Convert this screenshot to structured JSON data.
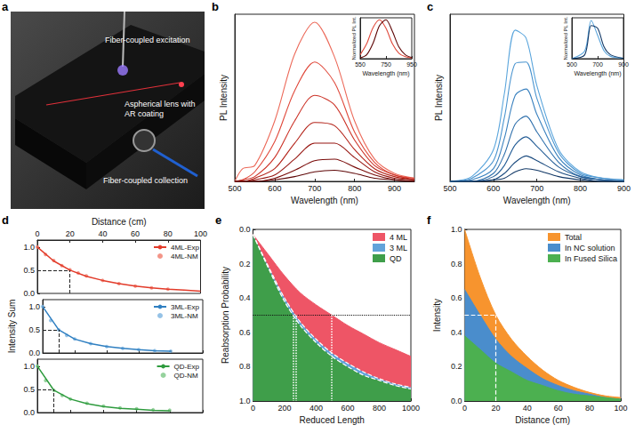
{
  "chart_data": [
    {
      "panel": "a",
      "type": "illustration",
      "annotations": [
        "Fiber-coupled excitation",
        "Aspherical lens with AR coating",
        "Fiber-coupled collection"
      ]
    },
    {
      "panel": "b",
      "type": "line",
      "x_label": "Wavelength (nm)",
      "y_label": "PL Intensity",
      "x": [
        500,
        520,
        550,
        600,
        650,
        700,
        750,
        800,
        850,
        900,
        950
      ],
      "xlim": [
        500,
        950
      ],
      "xticks": [
        500,
        600,
        700,
        800,
        900
      ],
      "ylim": [
        0,
        1.05
      ],
      "tick_labels": "x",
      "series": [
        {
          "color": "#ec6a5a",
          "values": [
            0,
            0.08,
            0.1,
            0.38,
            0.8,
            1.0,
            0.78,
            0.38,
            0.14,
            0.05,
            0.02
          ]
        },
        {
          "color": "#e04a3c",
          "values": [
            0,
            0.01,
            0.06,
            0.25,
            0.57,
            0.75,
            0.62,
            0.31,
            0.12,
            0.04,
            0.02
          ]
        },
        {
          "color": "#cc3328",
          "values": [
            0,
            0.01,
            0.03,
            0.15,
            0.38,
            0.54,
            0.48,
            0.26,
            0.1,
            0.04,
            0.01
          ]
        },
        {
          "color": "#b32218",
          "values": [
            0,
            0,
            0.02,
            0.08,
            0.24,
            0.37,
            0.35,
            0.2,
            0.08,
            0.03,
            0.01
          ]
        },
        {
          "color": "#961510",
          "values": [
            0,
            0,
            0.01,
            0.04,
            0.14,
            0.24,
            0.24,
            0.15,
            0.06,
            0.02,
            0.01
          ]
        },
        {
          "color": "#7a0c0a",
          "values": [
            0,
            0,
            0,
            0.02,
            0.07,
            0.13,
            0.14,
            0.09,
            0.04,
            0.01,
            0
          ]
        },
        {
          "color": "#5e0606",
          "values": [
            0,
            0,
            0,
            0.01,
            0.03,
            0.06,
            0.07,
            0.05,
            0.02,
            0.01,
            0
          ]
        }
      ],
      "inset": {
        "type": "line",
        "x_label": "Wavelength (nm)",
        "y_label": "Normalized PL Int.",
        "x": [
          550,
          600,
          650,
          700,
          750,
          800,
          850,
          900,
          950
        ],
        "xlim": [
          550,
          950
        ],
        "xticks": [
          550,
          750,
          950
        ],
        "ylim": [
          0,
          1.05
        ],
        "tick_labels": "x",
        "series": [
          {
            "color": "#e04a3c",
            "values": [
              0.1,
              0.38,
              0.8,
              1.0,
              0.78,
              0.38,
              0.14,
              0.05,
              0.02
            ]
          },
          {
            "color": "#5e0606",
            "values": [
              0.02,
              0.1,
              0.4,
              0.85,
              1.0,
              0.7,
              0.3,
              0.1,
              0.03
            ]
          }
        ]
      }
    },
    {
      "panel": "c",
      "type": "line",
      "x_label": "Wavelength (nm)",
      "y_label": "PL Intensity",
      "x": [
        500,
        550,
        600,
        625,
        650,
        675,
        700,
        750,
        800,
        850,
        900
      ],
      "xlim": [
        500,
        900
      ],
      "xticks": [
        500,
        600,
        700,
        800,
        900
      ],
      "ylim": [
        0,
        1.05
      ],
      "tick_labels": "x",
      "series": [
        {
          "color": "#5aa5dc",
          "values": [
            0,
            0.03,
            0.2,
            0.55,
            0.95,
            0.9,
            0.6,
            0.2,
            0.06,
            0.02,
            0.01
          ]
        },
        {
          "color": "#4a94cf",
          "values": [
            0,
            0.02,
            0.13,
            0.4,
            0.74,
            0.75,
            0.52,
            0.18,
            0.05,
            0.02,
            0.01
          ]
        },
        {
          "color": "#3b82bf",
          "values": [
            0,
            0.01,
            0.08,
            0.27,
            0.54,
            0.58,
            0.42,
            0.15,
            0.04,
            0.01,
            0
          ]
        },
        {
          "color": "#2f70ac",
          "values": [
            0,
            0,
            0.05,
            0.17,
            0.36,
            0.41,
            0.31,
            0.12,
            0.03,
            0.01,
            0
          ]
        },
        {
          "color": "#245d96",
          "values": [
            0,
            0,
            0.03,
            0.1,
            0.23,
            0.28,
            0.22,
            0.09,
            0.03,
            0.01,
            0
          ]
        },
        {
          "color": "#1a4a7e",
          "values": [
            0,
            0,
            0.01,
            0.05,
            0.12,
            0.16,
            0.13,
            0.06,
            0.02,
            0,
            0
          ]
        },
        {
          "color": "#123866",
          "values": [
            0,
            0,
            0.01,
            0.02,
            0.06,
            0.08,
            0.07,
            0.03,
            0.01,
            0,
            0
          ]
        }
      ],
      "inset": {
        "type": "line",
        "x_label": "Wavelength (nm)",
        "y_label": "Normalized PL Int.",
        "x": [
          500,
          600,
          650,
          700,
          750,
          800,
          900
        ],
        "xlim": [
          500,
          900
        ],
        "xticks": [
          500,
          700,
          900
        ],
        "ylim": [
          0,
          1.05
        ],
        "tick_labels": "x",
        "series": [
          {
            "color": "#5aa5dc",
            "values": [
              0,
              0.2,
              0.98,
              0.6,
              0.2,
              0.06,
              0.01
            ]
          },
          {
            "color": "#123866",
            "values": [
              0,
              0.1,
              0.85,
              0.78,
              0.3,
              0.1,
              0.01
            ]
          }
        ]
      }
    },
    {
      "panel": "d",
      "type": "line",
      "x_label": "Distance (cm)",
      "y_label": "Intensity Sum",
      "xlim": [
        0,
        100
      ],
      "xticks": [
        0,
        20,
        40,
        60,
        80,
        100
      ],
      "legend": "top-right",
      "subplots": [
        {
          "ylim": [
            0,
            1.15
          ],
          "yticks": [
            {
              "value": 0,
              "label": "0.0"
            },
            0.5,
            {
              "value": 1,
              "label": "1.0"
            }
          ],
          "half_distance": 20,
          "half_level": 0.5,
          "series": [
            {
              "name": "4ML-Exp",
              "type": "line",
              "color": "#e23b2a",
              "x": [
                0,
                10,
                20,
                30,
                40,
                50,
                60,
                70,
                80,
                90,
                100
              ],
              "values": [
                1.0,
                0.7,
                0.5,
                0.37,
                0.28,
                0.21,
                0.16,
                0.12,
                0.09,
                0.07,
                0.05
              ]
            },
            {
              "name": "4ML-NM",
              "type": "scatter",
              "marker": "circle",
              "color": "#f07a6a",
              "x": [
                0,
                5,
                10,
                15,
                20,
                25,
                30,
                40,
                50,
                60,
                70,
                80
              ],
              "values": [
                1.0,
                0.84,
                0.71,
                0.6,
                0.51,
                0.44,
                0.38,
                0.28,
                0.21,
                0.16,
                0.12,
                0.09
              ]
            }
          ]
        },
        {
          "ylim": [
            0,
            1.15
          ],
          "yticks": [
            {
              "value": 0,
              "label": "0.0"
            },
            0.5,
            {
              "value": 1,
              "label": "1.0"
            }
          ],
          "half_distance": 10,
          "half_level": 0.5,
          "series": [
            {
              "name": "3ML-Exp",
              "type": "line",
              "color": "#2f7fc1",
              "x": [
                0,
                10,
                20,
                30,
                40,
                50,
                60,
                70,
                80
              ],
              "values": [
                1.0,
                0.5,
                0.3,
                0.2,
                0.14,
                0.1,
                0.07,
                0.05,
                0.04
              ]
            },
            {
              "name": "3ML-NM",
              "type": "scatter",
              "marker": "circle",
              "color": "#7ab3e0",
              "x": [
                0,
                5,
                10,
                15,
                20,
                30,
                40,
                50,
                60,
                70,
                80
              ],
              "values": [
                1.0,
                0.7,
                0.5,
                0.38,
                0.3,
                0.2,
                0.14,
                0.1,
                0.07,
                0.05,
                0.04
              ]
            }
          ]
        },
        {
          "ylim": [
            0,
            1.15
          ],
          "yticks": [
            {
              "value": 0,
              "label": "0.0"
            },
            0.5,
            {
              "value": 1,
              "label": "1.0"
            }
          ],
          "half_distance": 10,
          "half_level": 0.5,
          "series": [
            {
              "name": "QD-Exp",
              "type": "line",
              "color": "#2e9b3e",
              "x": [
                0,
                10,
                20,
                30,
                40,
                50,
                60,
                70,
                80
              ],
              "values": [
                1.0,
                0.48,
                0.29,
                0.19,
                0.13,
                0.09,
                0.07,
                0.05,
                0.04
              ]
            },
            {
              "name": "QD-NM",
              "type": "scatter",
              "marker": "circle",
              "color": "#7cc784",
              "x": [
                0,
                5,
                10,
                15,
                20,
                30,
                40,
                50,
                60,
                70,
                80
              ],
              "values": [
                1.0,
                0.69,
                0.48,
                0.37,
                0.29,
                0.2,
                0.14,
                0.1,
                0.08,
                0.06,
                0.05
              ]
            }
          ]
        }
      ]
    },
    {
      "panel": "e",
      "type": "area",
      "x_label": "Reduced Length",
      "y_label": "Reabsorption Probability",
      "x": [
        0,
        100,
        200,
        300,
        400,
        500,
        600,
        700,
        800,
        900,
        1000
      ],
      "xlim": [
        0,
        1000
      ],
      "xticks": [
        0,
        200,
        400,
        600,
        800,
        1000
      ],
      "ylim": [
        1,
        0
      ],
      "yticks": [
        {
          "value": 0,
          "label": "0.0"
        },
        0.2,
        0.4,
        0.6,
        0.8,
        {
          "value": 1,
          "label": "1.0"
        }
      ],
      "legend": "top-right",
      "half_level": 0.5,
      "half_lengths": [
        255,
        270,
        500
      ],
      "series": [
        {
          "name": "4 ML",
          "color": "#ee5566",
          "values": [
            0.03,
            0.15,
            0.27,
            0.37,
            0.44,
            0.5,
            0.56,
            0.61,
            0.66,
            0.7,
            0.74
          ]
        },
        {
          "name": "3 ML",
          "color": "#62a3da",
          "line_style": "dashed",
          "values": [
            0.03,
            0.22,
            0.4,
            0.54,
            0.64,
            0.72,
            0.78,
            0.83,
            0.87,
            0.9,
            0.92
          ]
        },
        {
          "name": "QD",
          "color": "#3f9e4a",
          "line_style": "dashed",
          "values": [
            0.03,
            0.23,
            0.42,
            0.56,
            0.66,
            0.74,
            0.8,
            0.85,
            0.88,
            0.91,
            0.93
          ]
        }
      ]
    },
    {
      "panel": "f",
      "type": "area",
      "x_label": "Distance (cm)",
      "y_label": "Intensity",
      "x": [
        0,
        10,
        20,
        30,
        40,
        50,
        60,
        70,
        80,
        90,
        100
      ],
      "xlim": [
        0,
        100
      ],
      "xticks": [
        0,
        20,
        40,
        60,
        80,
        100
      ],
      "ylim": [
        0,
        1
      ],
      "yticks": [
        {
          "value": 0,
          "label": "0.0"
        },
        0.2,
        0.4,
        0.6,
        0.8,
        {
          "value": 1,
          "label": "1.0"
        }
      ],
      "legend": "top-right",
      "stacked": false,
      "half_distance": 20,
      "half_level": 0.5,
      "series": [
        {
          "name": "Total",
          "color": "#f7942e",
          "values": [
            1.0,
            0.72,
            0.5,
            0.36,
            0.26,
            0.18,
            0.12,
            0.08,
            0.05,
            0.03,
            0.02
          ]
        },
        {
          "name": "In NC solution",
          "color": "#4a8dcc",
          "values": [
            0.65,
            0.5,
            0.36,
            0.26,
            0.19,
            0.13,
            0.09,
            0.06,
            0.04,
            0.02,
            0.01
          ]
        },
        {
          "name": "In Fused Silica",
          "color": "#4cb050",
          "values": [
            0.38,
            0.3,
            0.22,
            0.17,
            0.12,
            0.09,
            0.06,
            0.04,
            0.03,
            0.02,
            0.01
          ]
        }
      ]
    }
  ]
}
